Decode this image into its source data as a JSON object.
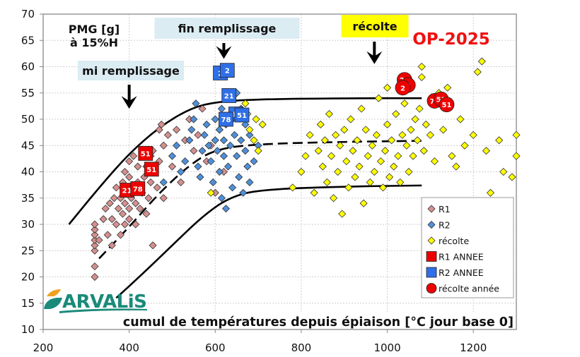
{
  "chart_data": {
    "type": "scatter",
    "title": "OP-2025",
    "ylabel": "PMG [g] à 15%H",
    "ylabel_line1": "PMG [g]",
    "ylabel_line2": "à 15%H",
    "xlabel": "cumul de températures depuis épiaison [°C jour base 0]",
    "xlim": [
      200,
      1300
    ],
    "ylim": [
      10,
      70
    ],
    "x_ticks": [
      200,
      400,
      600,
      800,
      1000,
      1200
    ],
    "y_ticks": [
      10,
      15,
      20,
      25,
      30,
      35,
      40,
      45,
      50,
      55,
      60,
      65,
      70
    ],
    "grid": true,
    "legend_position": "bottom-right inside",
    "annotations": [
      {
        "text": "mi remplissage",
        "x": 400,
        "y": 60,
        "arrow_to": [
          400,
          52
        ],
        "box_color": "#dbecf3"
      },
      {
        "text": "fin remplissage",
        "x": 620,
        "y": 67,
        "arrow_to": [
          620,
          61.5
        ],
        "box_color": "#dbecf3"
      },
      {
        "text": "récolte",
        "x": 970,
        "y": 67.5,
        "arrow_to": [
          970,
          60.5
        ],
        "box_color": "#ffff00"
      }
    ],
    "colors": {
      "R1": "#d4908f",
      "R2": "#4f8fd8",
      "recolte": "#ffff00",
      "R1_annee": "#ee0000",
      "R2_annee": "#2f6fe8",
      "recolte_annee": "#ee0000",
      "title": "#ee0000",
      "curve": "#000000"
    },
    "legend": [
      {
        "label": "R1",
        "marker": "diamond",
        "color": "#d4908f"
      },
      {
        "label": "R2",
        "marker": "diamond",
        "color": "#4f8fd8"
      },
      {
        "label": "récolte",
        "marker": "diamond",
        "color": "#ffff00"
      },
      {
        "label": "R1 ANNEE",
        "marker": "square",
        "color": "#ee0000"
      },
      {
        "label": "R2 ANNEE",
        "marker": "square",
        "color": "#2f6fe8"
      },
      {
        "label": "récolte année",
        "marker": "circle",
        "color": "#ee0000"
      }
    ],
    "curves": [
      {
        "name": "upper envelope",
        "style": "solid",
        "points": [
          [
            260,
            30
          ],
          [
            330,
            37
          ],
          [
            400,
            43.5
          ],
          [
            470,
            48.5
          ],
          [
            540,
            52
          ],
          [
            600,
            53.3
          ],
          [
            700,
            53.8
          ],
          [
            900,
            54
          ],
          [
            1080,
            54
          ]
        ]
      },
      {
        "name": "median",
        "style": "dashed",
        "points": [
          [
            330,
            23.5
          ],
          [
            400,
            29.5
          ],
          [
            470,
            36
          ],
          [
            540,
            41.3
          ],
          [
            600,
            44.3
          ],
          [
            700,
            45.3
          ],
          [
            900,
            45.7
          ],
          [
            1080,
            45.9
          ]
        ]
      },
      {
        "name": "lower envelope",
        "style": "solid",
        "points": [
          [
            370,
            16
          ],
          [
            430,
            20.5
          ],
          [
            500,
            26
          ],
          [
            570,
            31.5
          ],
          [
            630,
            35
          ],
          [
            700,
            36.6
          ],
          [
            900,
            37.2
          ],
          [
            1080,
            37.4
          ]
        ]
      }
    ],
    "series": [
      {
        "name": "R1",
        "marker": "diamond",
        "points": [
          [
            320,
            20
          ],
          [
            320,
            22
          ],
          [
            320,
            25
          ],
          [
            320,
            26
          ],
          [
            320,
            27
          ],
          [
            320,
            28
          ],
          [
            320,
            29
          ],
          [
            320,
            30
          ],
          [
            330,
            27
          ],
          [
            340,
            31
          ],
          [
            345,
            33
          ],
          [
            350,
            28
          ],
          [
            355,
            34
          ],
          [
            360,
            26
          ],
          [
            360,
            31
          ],
          [
            365,
            35
          ],
          [
            370,
            30
          ],
          [
            370,
            37
          ],
          [
            375,
            33
          ],
          [
            380,
            28
          ],
          [
            380,
            35
          ],
          [
            385,
            32
          ],
          [
            385,
            38
          ],
          [
            390,
            30
          ],
          [
            390,
            34
          ],
          [
            390,
            40
          ],
          [
            395,
            36
          ],
          [
            400,
            31
          ],
          [
            400,
            33
          ],
          [
            400,
            39
          ],
          [
            400,
            42
          ],
          [
            405,
            35
          ],
          [
            410,
            37
          ],
          [
            410,
            43
          ],
          [
            415,
            30
          ],
          [
            415,
            34
          ],
          [
            420,
            38
          ],
          [
            420,
            41
          ],
          [
            425,
            33
          ],
          [
            430,
            36
          ],
          [
            430,
            44
          ],
          [
            435,
            39
          ],
          [
            440,
            32
          ],
          [
            440,
            41
          ],
          [
            445,
            35
          ],
          [
            450,
            38
          ],
          [
            450,
            43
          ],
          [
            455,
            26
          ],
          [
            455,
            44
          ],
          [
            460,
            40
          ],
          [
            465,
            37
          ],
          [
            470,
            42
          ],
          [
            470,
            48
          ],
          [
            475,
            49
          ],
          [
            480,
            35
          ],
          [
            480,
            45
          ],
          [
            490,
            47
          ],
          [
            500,
            41
          ],
          [
            510,
            48
          ],
          [
            520,
            38
          ],
          [
            530,
            46
          ],
          [
            540,
            50
          ],
          [
            550,
            44
          ],
          [
            560,
            47
          ],
          [
            570,
            52
          ],
          [
            580,
            42
          ],
          [
            590,
            45
          ],
          [
            600,
            36
          ],
          [
            610,
            48
          ],
          [
            620,
            40
          ]
        ]
      },
      {
        "name": "R2",
        "marker": "diamond",
        "points": [
          [
            440,
            44
          ],
          [
            450,
            41
          ],
          [
            480,
            38
          ],
          [
            500,
            43
          ],
          [
            510,
            45
          ],
          [
            520,
            40
          ],
          [
            530,
            42
          ],
          [
            540,
            46
          ],
          [
            545,
            48
          ],
          [
            550,
            50
          ],
          [
            555,
            53
          ],
          [
            560,
            41
          ],
          [
            565,
            39
          ],
          [
            570,
            44
          ],
          [
            575,
            47
          ],
          [
            580,
            49
          ],
          [
            585,
            45
          ],
          [
            590,
            42
          ],
          [
            595,
            38
          ],
          [
            600,
            46
          ],
          [
            600,
            50
          ],
          [
            605,
            44
          ],
          [
            610,
            40
          ],
          [
            610,
            48
          ],
          [
            615,
            35
          ],
          [
            615,
            52
          ],
          [
            620,
            43
          ],
          [
            620,
            46
          ],
          [
            625,
            33
          ],
          [
            625,
            49
          ],
          [
            630,
            41
          ],
          [
            635,
            45
          ],
          [
            640,
            37
          ],
          [
            640,
            50
          ],
          [
            645,
            47
          ],
          [
            650,
            43
          ],
          [
            650,
            55
          ],
          [
            655,
            39
          ],
          [
            660,
            46
          ],
          [
            660,
            52
          ],
          [
            665,
            36
          ],
          [
            670,
            44
          ],
          [
            670,
            49
          ],
          [
            675,
            41
          ],
          [
            680,
            38
          ],
          [
            680,
            47
          ],
          [
            690,
            42
          ],
          [
            700,
            45
          ]
        ]
      },
      {
        "name": "récolte",
        "marker": "diamond",
        "points": [
          [
            590,
            36
          ],
          [
            670,
            53
          ],
          [
            675,
            51
          ],
          [
            680,
            48
          ],
          [
            690,
            46
          ],
          [
            695,
            50
          ],
          [
            700,
            44
          ],
          [
            710,
            49
          ],
          [
            780,
            37
          ],
          [
            800,
            40
          ],
          [
            810,
            43
          ],
          [
            820,
            47
          ],
          [
            830,
            36
          ],
          [
            840,
            44
          ],
          [
            845,
            49
          ],
          [
            850,
            41
          ],
          [
            855,
            46
          ],
          [
            860,
            38
          ],
          [
            865,
            51
          ],
          [
            870,
            43
          ],
          [
            875,
            35
          ],
          [
            880,
            47
          ],
          [
            885,
            40
          ],
          [
            890,
            45
          ],
          [
            895,
            32
          ],
          [
            900,
            48
          ],
          [
            905,
            42
          ],
          [
            910,
            37
          ],
          [
            915,
            50
          ],
          [
            920,
            44
          ],
          [
            925,
            39
          ],
          [
            930,
            46
          ],
          [
            935,
            41
          ],
          [
            940,
            52
          ],
          [
            945,
            34
          ],
          [
            950,
            48
          ],
          [
            955,
            43
          ],
          [
            960,
            38
          ],
          [
            965,
            45
          ],
          [
            970,
            40
          ],
          [
            975,
            47
          ],
          [
            980,
            54
          ],
          [
            985,
            42
          ],
          [
            990,
            37
          ],
          [
            995,
            44
          ],
          [
            1000,
            49
          ],
          [
            1000,
            56
          ],
          [
            1005,
            39
          ],
          [
            1010,
            46
          ],
          [
            1015,
            41
          ],
          [
            1020,
            51
          ],
          [
            1025,
            43
          ],
          [
            1030,
            38
          ],
          [
            1035,
            47
          ],
          [
            1040,
            53
          ],
          [
            1045,
            45
          ],
          [
            1050,
            40
          ],
          [
            1055,
            48
          ],
          [
            1060,
            43
          ],
          [
            1065,
            50
          ],
          [
            1070,
            46
          ],
          [
            1075,
            52
          ],
          [
            1080,
            58
          ],
          [
            1080,
            60
          ],
          [
            1085,
            44
          ],
          [
            1090,
            49
          ],
          [
            1100,
            47
          ],
          [
            1110,
            42
          ],
          [
            1120,
            55
          ],
          [
            1130,
            48
          ],
          [
            1140,
            56
          ],
          [
            1150,
            43
          ],
          [
            1160,
            41
          ],
          [
            1170,
            50
          ],
          [
            1180,
            45
          ],
          [
            1200,
            47
          ],
          [
            1210,
            59
          ],
          [
            1220,
            61
          ],
          [
            1230,
            44
          ],
          [
            1240,
            36
          ],
          [
            1260,
            46
          ],
          [
            1270,
            40
          ],
          [
            1290,
            39
          ],
          [
            1300,
            43
          ],
          [
            1300,
            47
          ]
        ]
      },
      {
        "name": "R1 ANNEE",
        "marker": "square",
        "points": [
          [
            395,
            36.5,
            "21"
          ],
          [
            420,
            36.8,
            "78"
          ],
          [
            438,
            43.5,
            "51"
          ],
          [
            452,
            40.5,
            "51"
          ]
        ]
      },
      {
        "name": "R2 ANNEE",
        "marker": "square",
        "points": [
          [
            612,
            58.8,
            "2"
          ],
          [
            628,
            59.3,
            "2"
          ],
          [
            632,
            54.5,
            "21"
          ],
          [
            648,
            51,
            "55"
          ],
          [
            662,
            50.8,
            "51"
          ],
          [
            625,
            50,
            "78"
          ]
        ]
      },
      {
        "name": "récolte année",
        "marker": "circle",
        "points": [
          [
            1040,
            57.5,
            "21"
          ],
          [
            1048,
            56.5,
            "2"
          ],
          [
            1036,
            56,
            "2"
          ],
          [
            1110,
            53.5,
            "78"
          ],
          [
            1125,
            53.8,
            "51"
          ],
          [
            1138,
            52.8,
            "51"
          ]
        ]
      }
    ]
  },
  "branding": {
    "logo_text": "ARVALiS",
    "logo_color": "#1a8a7a",
    "logo_leaf_color": "#f0a020"
  }
}
